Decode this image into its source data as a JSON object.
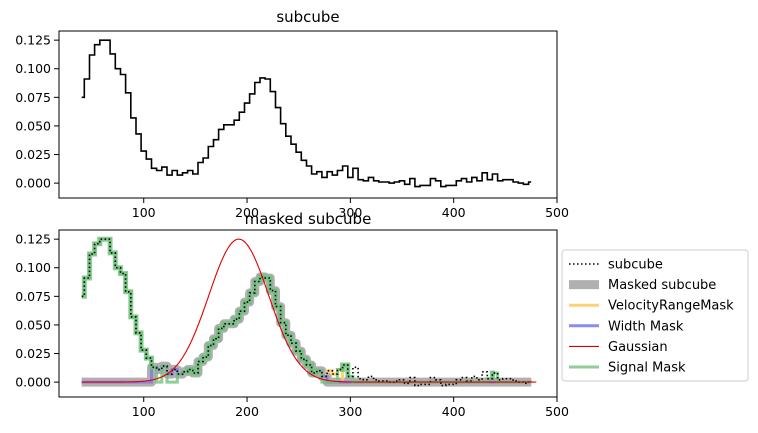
{
  "chart_data": [
    {
      "type": "line",
      "title": "subcube",
      "xlabel": "",
      "ylabel": "",
      "xlim": [
        18,
        500
      ],
      "ylim": [
        -0.013,
        0.133
      ],
      "xticks": [
        100,
        200,
        300,
        400,
        500
      ],
      "xtick_labels": [
        "100",
        "200",
        "300",
        "400",
        "500"
      ],
      "yticks": [
        0.0,
        0.025,
        0.05,
        0.075,
        0.1,
        0.125
      ],
      "ytick_labels": [
        "0.000",
        "0.025",
        "0.050",
        "0.075",
        "0.100",
        "0.125"
      ],
      "grid": false,
      "series": [
        {
          "style": "steps-mid",
          "color": "#000000",
          "x_start": 40,
          "x_step": 5,
          "values": [
            0.075,
            0.091,
            0.112,
            0.121,
            0.125,
            0.125,
            0.113,
            0.1,
            0.095,
            0.079,
            0.057,
            0.043,
            0.028,
            0.021,
            0.013,
            0.011,
            0.014,
            0.007,
            0.011,
            0.007,
            0.009,
            0.011,
            0.008,
            0.018,
            0.022,
            0.032,
            0.038,
            0.047,
            0.051,
            0.051,
            0.055,
            0.062,
            0.07,
            0.078,
            0.088,
            0.092,
            0.091,
            0.08,
            0.066,
            0.052,
            0.041,
            0.034,
            0.027,
            0.02,
            0.015,
            0.008,
            0.01,
            0.005,
            0.01,
            0.007,
            0.011,
            0.015,
            0.005,
            0.013,
            0.003,
            0.002,
            0.005,
            0.002,
            0.001,
            0.001,
            0.0,
            0.001,
            0.002,
            -0.001,
            0.004,
            -0.003,
            -0.002,
            -0.002,
            0.004,
            0.002,
            -0.003,
            -0.002,
            -0.002,
            0.002,
            0.004,
            0.001,
            0.005,
            0.002,
            0.009,
            0.003,
            0.008,
            0.002,
            0.003,
            0.003,
            0.001,
            0.0,
            -0.001,
            0.001
          ]
        }
      ]
    },
    {
      "type": "line",
      "title": "masked subcube",
      "xlabel": "",
      "ylabel": "",
      "xlim": [
        18,
        500
      ],
      "ylim": [
        -0.013,
        0.133
      ],
      "xticks": [
        100,
        200,
        300,
        400,
        500
      ],
      "xtick_labels": [
        "100",
        "200",
        "300",
        "400",
        "500"
      ],
      "yticks": [
        0.0,
        0.025,
        0.05,
        0.075,
        0.1,
        0.125
      ],
      "ytick_labels": [
        "0.000",
        "0.025",
        "0.050",
        "0.075",
        "0.100",
        "0.125"
      ],
      "grid": false,
      "legend_position": "right, outside",
      "masks": {
        "velocity_range": [
          108,
          290
        ],
        "width": [
          108,
          275
        ],
        "signal_segments": [
          [
            40,
            110
          ],
          [
            118,
            122
          ],
          [
            133,
            138
          ],
          [
            140,
            272
          ],
          [
            287,
            302
          ],
          [
            412,
            417
          ],
          [
            432,
            442
          ]
        ]
      },
      "gaussian": {
        "amplitude": 0.125,
        "mean": 192,
        "stddev": 29
      },
      "series": [
        {
          "name": "subcube",
          "color": "#000000",
          "style": "dotted steps"
        },
        {
          "name": "Masked subcube",
          "color": "#b0b0b0",
          "style": "thick solid steps"
        },
        {
          "name": "VelocityRangeMask",
          "color": "#ffcc66",
          "style": "steps"
        },
        {
          "name": "Width Mask",
          "color": "#7777ee",
          "style": "steps"
        },
        {
          "name": "Gaussian",
          "color": "#e00000",
          "style": "thin solid"
        },
        {
          "name": "Signal Mask",
          "color": "#72c27e",
          "style": "steps"
        }
      ]
    }
  ]
}
